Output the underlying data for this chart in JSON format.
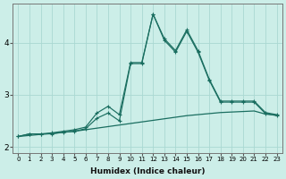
{
  "xlabel": "Humidex (Indice chaleur)",
  "bg_color": "#cceee8",
  "grid_color": "#aad8d2",
  "line_color": "#1a6e60",
  "xlim": [
    -0.5,
    23.5
  ],
  "ylim": [
    1.88,
    4.75
  ],
  "yticks": [
    2,
    3,
    4
  ],
  "xticks": [
    0,
    1,
    2,
    3,
    4,
    5,
    6,
    7,
    8,
    9,
    10,
    11,
    12,
    13,
    14,
    15,
    16,
    17,
    18,
    19,
    20,
    21,
    22,
    23
  ],
  "smooth_x": [
    0,
    1,
    2,
    3,
    4,
    5,
    6,
    7,
    8,
    9,
    10,
    11,
    12,
    13,
    14,
    15,
    16,
    17,
    18,
    19,
    20,
    21,
    22,
    23
  ],
  "smooth_y": [
    2.2,
    2.22,
    2.24,
    2.26,
    2.28,
    2.3,
    2.33,
    2.36,
    2.39,
    2.42,
    2.45,
    2.48,
    2.51,
    2.54,
    2.57,
    2.6,
    2.62,
    2.64,
    2.66,
    2.67,
    2.68,
    2.69,
    2.63,
    2.61
  ],
  "jagged1_x": [
    0,
    1,
    2,
    3,
    4,
    5,
    6,
    7,
    8,
    9,
    10,
    11,
    12,
    13,
    14,
    15,
    16,
    17,
    18,
    19,
    20,
    21,
    22,
    23
  ],
  "jagged1_y": [
    2.2,
    2.25,
    2.25,
    2.25,
    2.28,
    2.3,
    2.35,
    2.55,
    2.65,
    2.5,
    3.6,
    3.6,
    4.55,
    4.05,
    3.82,
    4.22,
    3.82,
    3.28,
    2.86,
    2.86,
    2.86,
    2.86,
    2.64,
    2.6
  ],
  "jagged2_x": [
    0,
    1,
    2,
    3,
    4,
    5,
    6,
    7,
    8,
    9,
    10,
    11,
    12,
    13,
    14,
    15,
    16,
    17,
    18,
    19,
    20,
    21,
    22,
    23
  ],
  "jagged2_y": [
    2.2,
    2.25,
    2.25,
    2.27,
    2.3,
    2.33,
    2.38,
    2.65,
    2.78,
    2.62,
    3.62,
    3.62,
    4.55,
    4.08,
    3.85,
    4.25,
    3.85,
    3.3,
    2.88,
    2.88,
    2.88,
    2.88,
    2.66,
    2.62
  ]
}
